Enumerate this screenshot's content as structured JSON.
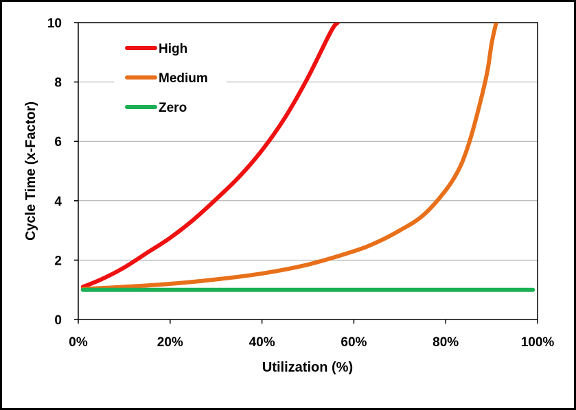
{
  "chart_data": {
    "type": "line",
    "title": "",
    "xlabel": "Utilization (%)",
    "ylabel": "Cycle Time (x-Factor)",
    "xlim": [
      0,
      1
    ],
    "ylim": [
      0,
      10
    ],
    "x_ticks": [
      0,
      0.2,
      0.4,
      0.6,
      0.8,
      1.0
    ],
    "x_tick_labels": [
      "0%",
      "20%",
      "40%",
      "60%",
      "80%",
      "100%"
    ],
    "y_ticks": [
      0,
      2,
      4,
      6,
      8,
      10
    ],
    "y_tick_labels": [
      "0",
      "2",
      "4",
      "6",
      "8",
      "10"
    ],
    "grid": "horizontal",
    "legend_position": "top-left",
    "series": [
      {
        "name": "High",
        "color": "#ee1111",
        "x": [
          0.01,
          0.05,
          0.1,
          0.15,
          0.2,
          0.25,
          0.3,
          0.35,
          0.4,
          0.45,
          0.5,
          0.55,
          0.565
        ],
        "y": [
          1.1,
          1.35,
          1.75,
          2.25,
          2.75,
          3.35,
          4.05,
          4.8,
          5.7,
          6.8,
          8.15,
          9.7,
          10.0
        ]
      },
      {
        "name": "Medium",
        "color": "#e8701a",
        "x": [
          0.01,
          0.1,
          0.2,
          0.3,
          0.4,
          0.5,
          0.6,
          0.65,
          0.7,
          0.75,
          0.8,
          0.83,
          0.85,
          0.87,
          0.89,
          0.9,
          0.91
        ],
        "y": [
          1.03,
          1.1,
          1.2,
          1.35,
          1.55,
          1.85,
          2.3,
          2.6,
          3.0,
          3.5,
          4.35,
          5.1,
          5.9,
          7.0,
          8.3,
          9.3,
          10.0
        ]
      },
      {
        "name": "Zero",
        "color": "#1bb055",
        "x": [
          0.01,
          0.99
        ],
        "y": [
          1.0,
          1.0
        ]
      }
    ]
  }
}
